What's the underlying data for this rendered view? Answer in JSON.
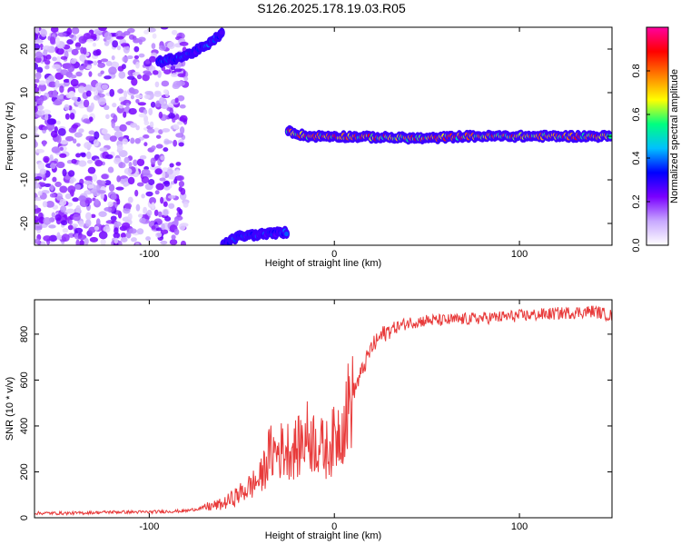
{
  "title": "S126.2025.178.19.03.R05",
  "chart_data": [
    {
      "type": "heatmap",
      "name": "spectrogram",
      "xlabel": "Height of straight line (km)",
      "ylabel": "Frequency (Hz)",
      "xlim": [
        -162,
        150
      ],
      "ylim": [
        -25,
        25
      ],
      "xticks": [
        -100,
        0,
        100
      ],
      "xtick_labels": [
        "-100",
        "0",
        "100"
      ],
      "yticks": [
        20,
        10,
        0,
        -10,
        -20
      ],
      "ytick_labels": [
        "20",
        "10",
        "0",
        "-10",
        "-20"
      ],
      "colorbar": {
        "label": "Normalized spectral amplitude",
        "range": [
          0,
          1
        ],
        "ticks": [
          0.0,
          0.2,
          0.4,
          0.6,
          0.8
        ],
        "tick_labels": [
          "0.0",
          "0.2",
          "0.4",
          "0.6",
          "0.8"
        ],
        "colors": [
          "#ffffff",
          "#c8a8ff",
          "#7a00ff",
          "#0000ff",
          "#00c0ff",
          "#00ff80",
          "#ffff00",
          "#ff8000",
          "#ff0000",
          "#ff00a0"
        ]
      },
      "features": [
        {
          "desc": "noise cloud",
          "x_range": [
            -162,
            -80
          ],
          "y_range": [
            -25,
            25
          ],
          "amplitude": 0.15
        },
        {
          "desc": "upper folded trace",
          "points": [
            [
              -95,
              17
            ],
            [
              -80,
              18.5
            ],
            [
              -68,
              21
            ],
            [
              -60,
              24
            ]
          ],
          "amplitude": 0.35
        },
        {
          "desc": "lower folded trace",
          "points": [
            [
              -60,
              -25
            ],
            [
              -52,
              -23
            ],
            [
              -40,
              -22.5
            ],
            [
              -25,
              -22
            ]
          ],
          "amplitude": 0.35
        },
        {
          "desc": "main tone",
          "points": [
            [
              -25,
              1.2
            ],
            [
              -15,
              0
            ],
            [
              0,
              0
            ],
            [
              50,
              -0.5
            ],
            [
              70,
              0
            ],
            [
              100,
              0
            ],
            [
              150,
              0
            ]
          ],
          "amplitude": 0.75
        }
      ]
    },
    {
      "type": "line",
      "name": "snr",
      "xlabel": "Height of straight line (km)",
      "ylabel": "SNR (10 * v/v)",
      "xlim": [
        -162,
        150
      ],
      "ylim": [
        0,
        950
      ],
      "xticks": [
        -100,
        0,
        100
      ],
      "xtick_labels": [
        "-100",
        "0",
        "100"
      ],
      "yticks": [
        0,
        200,
        400,
        600,
        800
      ],
      "ytick_labels": [
        "0",
        "200",
        "400",
        "600",
        "800"
      ],
      "color": "#e83a3a",
      "x": [
        -162,
        -140,
        -120,
        -100,
        -80,
        -60,
        -50,
        -40,
        -35,
        -30,
        -25,
        -20,
        -15,
        -10,
        -5,
        0,
        5,
        10,
        15,
        20,
        25,
        30,
        40,
        50,
        60,
        80,
        100,
        120,
        140,
        150
      ],
      "y": [
        20,
        20,
        25,
        25,
        30,
        60,
        110,
        170,
        280,
        290,
        300,
        300,
        360,
        330,
        290,
        340,
        420,
        540,
        640,
        740,
        790,
        820,
        850,
        860,
        860,
        870,
        880,
        890,
        900,
        880
      ]
    }
  ]
}
